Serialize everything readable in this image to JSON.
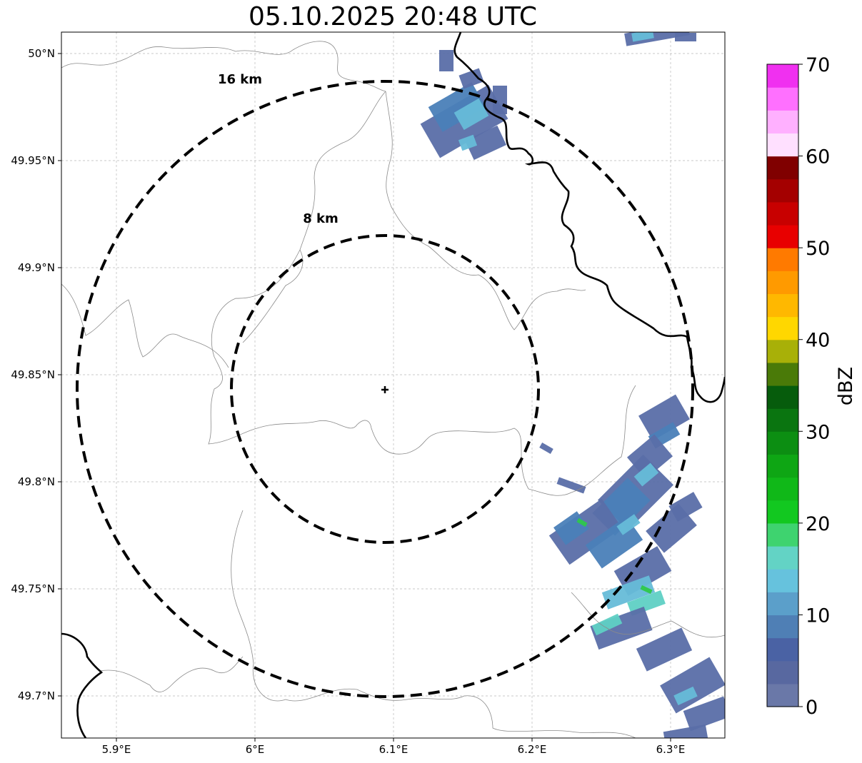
{
  "title": "05.10.2025 20:48 UTC",
  "map": {
    "lon_ticks": [
      {
        "value": 5.9,
        "label": "5.9°E"
      },
      {
        "value": 6.0,
        "label": "6°E"
      },
      {
        "value": 6.1,
        "label": "6.1°E"
      },
      {
        "value": 6.2,
        "label": "6.2°E"
      },
      {
        "value": 6.3,
        "label": "6.3°E"
      }
    ],
    "lat_ticks": [
      {
        "value": 50.0,
        "label": "50°N"
      },
      {
        "value": 49.95,
        "label": "49.95°N"
      },
      {
        "value": 49.9,
        "label": "49.9°N"
      },
      {
        "value": 49.85,
        "label": "49.85°N"
      },
      {
        "value": 49.8,
        "label": "49.8°N"
      },
      {
        "value": 49.75,
        "label": "49.75°N"
      },
      {
        "value": 49.7,
        "label": "49.7°N"
      }
    ],
    "lon_range": [
      5.86,
      6.34
    ],
    "lat_range": [
      49.68,
      50.01
    ],
    "gridlines": true,
    "center": {
      "lon": 6.095,
      "lat": 49.843
    },
    "rings": [
      {
        "radius_km": 8,
        "label": "8 km"
      },
      {
        "radius_km": 16,
        "label": "16 km"
      }
    ]
  },
  "colorbar": {
    "label": "dBZ",
    "min": 0,
    "max": 70,
    "tick_labels": [
      "0",
      "10",
      "20",
      "30",
      "40",
      "50",
      "60",
      "70"
    ],
    "colors": [
      "#6a78a8",
      "#5868a0",
      "#4a62a4",
      "#4f7fb5",
      "#5b9fca",
      "#66c2dd",
      "#63d3c5",
      "#3ed36f",
      "#12c820",
      "#10b818",
      "#0ea614",
      "#0c8e12",
      "#0a7510",
      "#065c0c",
      "#4a7a08",
      "#a8b008",
      "#ffd700",
      "#ffb800",
      "#ff9a00",
      "#ff7a00",
      "#e80000",
      "#c80000",
      "#a40000",
      "#800000",
      "#ffe0ff",
      "#ffb0ff",
      "#ff70ff",
      "#f030f0"
    ]
  },
  "echo_colors": {
    "weak": "#5a6ea8",
    "mid": "#4a80b8",
    "light": "#66bcd8",
    "cyan": "#5fd0c4",
    "green": "#2ec84a"
  }
}
